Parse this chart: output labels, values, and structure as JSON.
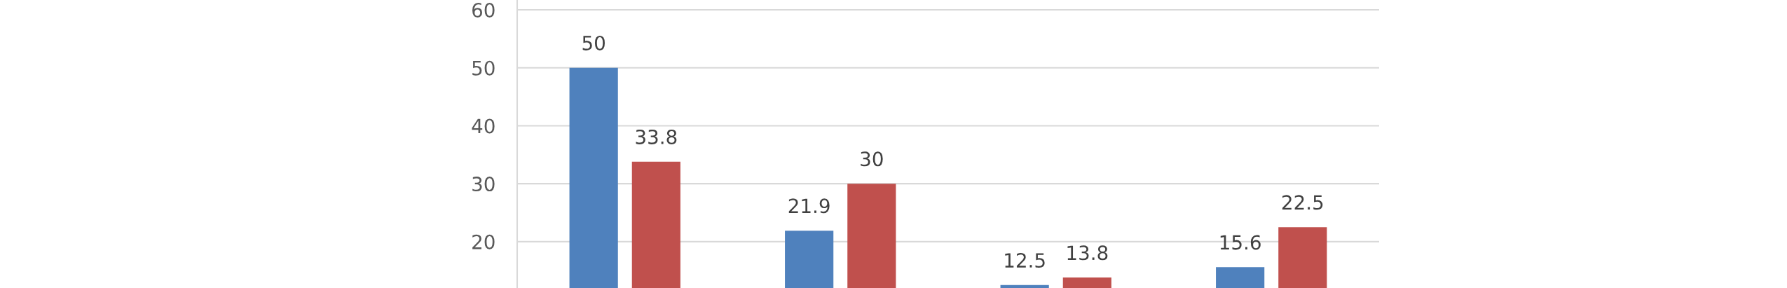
{
  "chart_data": {
    "type": "bar",
    "categories": [
      null,
      null,
      null,
      null
    ],
    "series": [
      {
        "color": "#4f81bd",
        "values": [
          50,
          21.9,
          12.5,
          15.6
        ]
      },
      {
        "color": "#c0504d",
        "values": [
          33.8,
          30,
          13.8,
          22.5
        ]
      }
    ],
    "ylim": [
      12,
      61.7
    ],
    "yticks": [
      20,
      30,
      40,
      50,
      60
    ],
    "grid": "y",
    "data_labels": true,
    "tick_labels": "y",
    "legend": false
  }
}
